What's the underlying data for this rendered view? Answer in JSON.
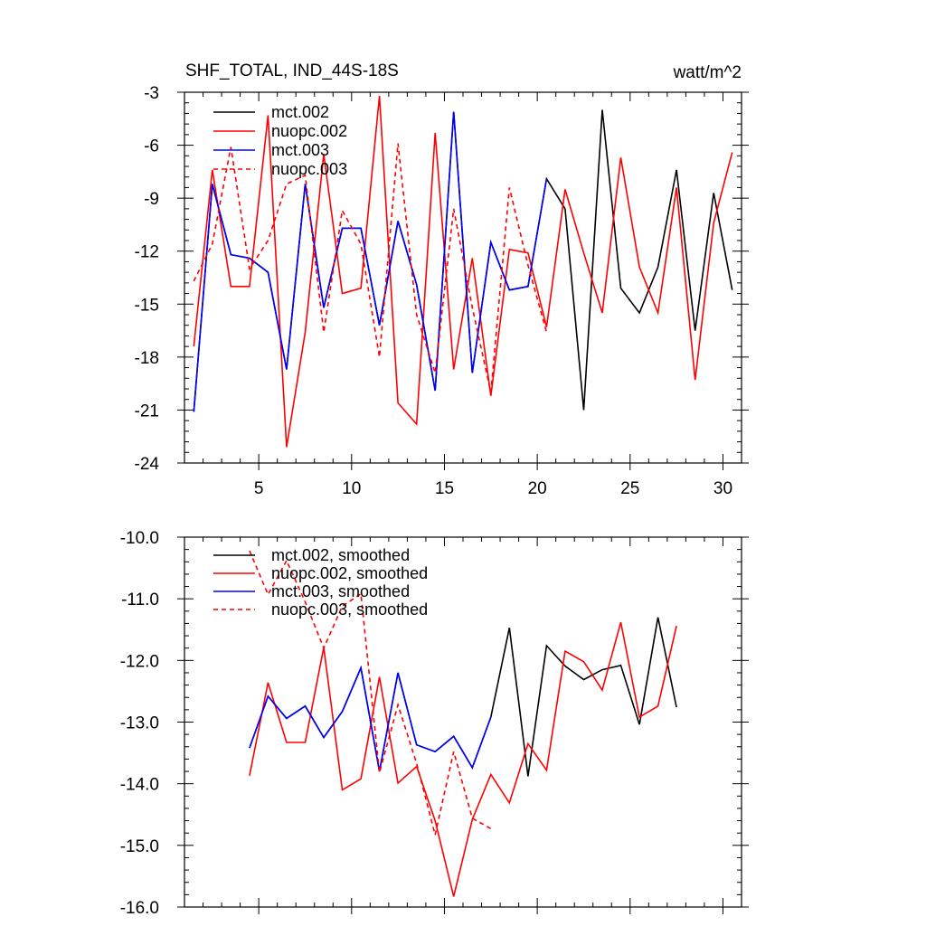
{
  "chart_data": [
    {
      "type": "line",
      "title": "SHF_TOTAL, IND_44S-18S",
      "units": "watt/m^2",
      "xlim": [
        1,
        31
      ],
      "ylim": [
        -24,
        -3
      ],
      "xticks": [
        5,
        10,
        15,
        20,
        25,
        30
      ],
      "yticks": [
        -3,
        -6,
        -9,
        -12,
        -15,
        -18,
        -21,
        -24
      ],
      "show_x_labels": true,
      "legend_position": "top-left",
      "series": [
        {
          "name": "mct.002",
          "color": "#000000",
          "dash": "solid",
          "x": [
            1.5,
            2.5,
            3.5,
            4.5,
            5.5,
            6.5,
            7.5,
            8.5,
            9.5,
            10.5,
            11.5,
            12.5,
            13.5,
            14.5,
            15.5,
            16.5,
            17.5,
            18.5,
            19.5,
            20.5,
            21.5,
            22.5,
            23.5,
            24.5,
            25.5,
            26.5,
            27.5,
            28.5,
            29.5,
            30.5
          ],
          "values": [
            -21.1,
            -8.2,
            -12.2,
            -12.4,
            -13.2,
            -18.7,
            -8.2,
            -15.2,
            -10.7,
            -10.7,
            -16.2,
            -10.3,
            -13.9,
            -19.9,
            -4.1,
            -18.9,
            -11.5,
            -14.2,
            -14.0,
            -7.9,
            -9.6,
            -21.0,
            -4.0,
            -14.1,
            -15.5,
            -12.9,
            -7.4,
            -16.5,
            -8.7,
            -14.2
          ]
        },
        {
          "name": "nuopc.002",
          "color": "#ff0000",
          "dash": "solid",
          "x": [
            1.5,
            2.5,
            3.5,
            4.5,
            5.5,
            6.5,
            7.5,
            8.5,
            9.5,
            10.5,
            11.5,
            12.5,
            13.5,
            14.5,
            15.5,
            16.5,
            17.5,
            18.5,
            19.5,
            20.5,
            21.5,
            22.5,
            23.5,
            24.5,
            25.5,
            26.5,
            27.5,
            28.5,
            29.5,
            30.5
          ],
          "values": [
            -17.4,
            -7.4,
            -14.0,
            -14.0,
            -4.3,
            -23.1,
            -16.6,
            -6.5,
            -14.4,
            -14.1,
            -3.2,
            -20.6,
            -21.8,
            -5.3,
            -18.7,
            -12.4,
            -20.2,
            -11.9,
            -12.1,
            -16.3,
            -8.5,
            -12.1,
            -15.5,
            -6.7,
            -12.9,
            -15.5,
            -8.4,
            -19.3,
            -10.4,
            -6.4
          ]
        },
        {
          "name": "mct.003",
          "color": "#0000ff",
          "dash": "solid",
          "x": [
            1.5,
            2.5,
            3.5,
            4.5,
            5.5,
            6.5,
            7.5,
            8.5,
            9.5,
            10.5,
            11.5,
            12.5,
            13.5,
            14.5,
            15.5,
            16.5,
            17.5,
            18.5,
            19.5,
            20.5
          ],
          "values": [
            -21.1,
            -8.2,
            -12.2,
            -12.4,
            -13.2,
            -18.7,
            -8.2,
            -15.2,
            -10.7,
            -10.7,
            -16.2,
            -10.3,
            -13.9,
            -19.9,
            -4.1,
            -18.9,
            -11.5,
            -14.2,
            -14.0,
            -7.9
          ]
        },
        {
          "name": "nuopc.003",
          "color": "#ff0000",
          "dash": "dashed",
          "x": [
            1.5,
            2.5,
            3.5,
            4.5,
            5.5,
            6.5,
            7.5,
            8.5,
            9.5,
            10.5,
            11.5,
            12.5,
            13.5,
            14.5,
            15.5,
            16.5,
            17.5,
            18.5,
            19.5,
            20.5
          ],
          "values": [
            -13.7,
            -11.6,
            -6.1,
            -13.0,
            -11.4,
            -8.2,
            -7.7,
            -16.6,
            -9.7,
            -11.6,
            -18.0,
            -5.9,
            -15.6,
            -18.9,
            -9.6,
            -15.2,
            -20.0,
            -8.4,
            -12.8,
            -16.6
          ]
        }
      ]
    },
    {
      "type": "line",
      "title": "",
      "units": "",
      "xlim": [
        1,
        31
      ],
      "ylim": [
        -16,
        -10
      ],
      "xticks": [
        5,
        10,
        15,
        20,
        25,
        30
      ],
      "yticks": [
        -10.0,
        -11.0,
        -12.0,
        -13.0,
        -14.0,
        -15.0,
        -16.0
      ],
      "ytick_labels": [
        "-10.0",
        "-11.0",
        "-12.0",
        "-13.0",
        "-14.0",
        "-15.0",
        "-16.0"
      ],
      "show_x_labels": false,
      "legend_position": "top-left",
      "series": [
        {
          "name": "mct.002, smoothed",
          "color": "#000000",
          "dash": "solid",
          "x": [
            4.5,
            5.5,
            6.5,
            7.5,
            8.5,
            9.5,
            10.5,
            11.5,
            12.5,
            13.5,
            14.5,
            15.5,
            16.5,
            17.5,
            18.5,
            19.5,
            20.5,
            21.5,
            22.5,
            23.5,
            24.5,
            25.5,
            26.5,
            27.5
          ],
          "values": [
            -13.42,
            -12.58,
            -12.94,
            -12.74,
            -13.25,
            -12.83,
            -12.12,
            -13.8,
            -12.2,
            -13.37,
            -13.48,
            -13.23,
            -13.74,
            -12.92,
            -11.47,
            -13.88,
            -11.76,
            -12.09,
            -12.31,
            -12.15,
            -12.08,
            -13.04,
            -11.3,
            -12.76
          ]
        },
        {
          "name": "nuopc.002, smoothed",
          "color": "#ff0000",
          "dash": "solid",
          "x": [
            4.5,
            5.5,
            6.5,
            7.5,
            8.5,
            9.5,
            10.5,
            11.5,
            12.5,
            13.5,
            14.5,
            15.5,
            16.5,
            17.5,
            18.5,
            19.5,
            20.5,
            21.5,
            22.5,
            23.5,
            24.5,
            25.5,
            26.5,
            27.5
          ],
          "values": [
            -13.87,
            -12.36,
            -13.33,
            -13.33,
            -11.79,
            -14.1,
            -13.92,
            -12.27,
            -13.99,
            -13.72,
            -14.6,
            -15.83,
            -14.58,
            -13.85,
            -14.31,
            -13.35,
            -13.78,
            -11.85,
            -12.02,
            -12.48,
            -11.38,
            -12.92,
            -12.74,
            -11.44
          ]
        },
        {
          "name": "mct.003, smoothed",
          "color": "#0000ff",
          "dash": "solid",
          "x": [
            4.5,
            5.5,
            6.5,
            7.5,
            8.5,
            9.5,
            10.5,
            11.5,
            12.5,
            13.5,
            14.5,
            15.5,
            16.5,
            17.5
          ],
          "values": [
            -13.42,
            -12.58,
            -12.94,
            -12.74,
            -13.25,
            -12.83,
            -12.12,
            -13.8,
            -12.2,
            -13.37,
            -13.48,
            -13.23,
            -13.74,
            -12.92
          ]
        },
        {
          "name": "nuopc.003, smoothed",
          "color": "#ff0000",
          "dash": "dashed",
          "x": [
            4.5,
            5.5,
            6.5,
            7.5,
            8.5,
            9.5,
            10.5,
            11.5,
            12.5,
            13.5,
            14.5,
            15.5,
            16.5,
            17.5
          ],
          "values": [
            -10.22,
            -10.93,
            -10.38,
            -11.05,
            -11.8,
            -11.12,
            -10.92,
            -13.82,
            -12.72,
            -13.67,
            -14.83,
            -13.48,
            -14.56,
            -14.73
          ]
        }
      ]
    }
  ]
}
